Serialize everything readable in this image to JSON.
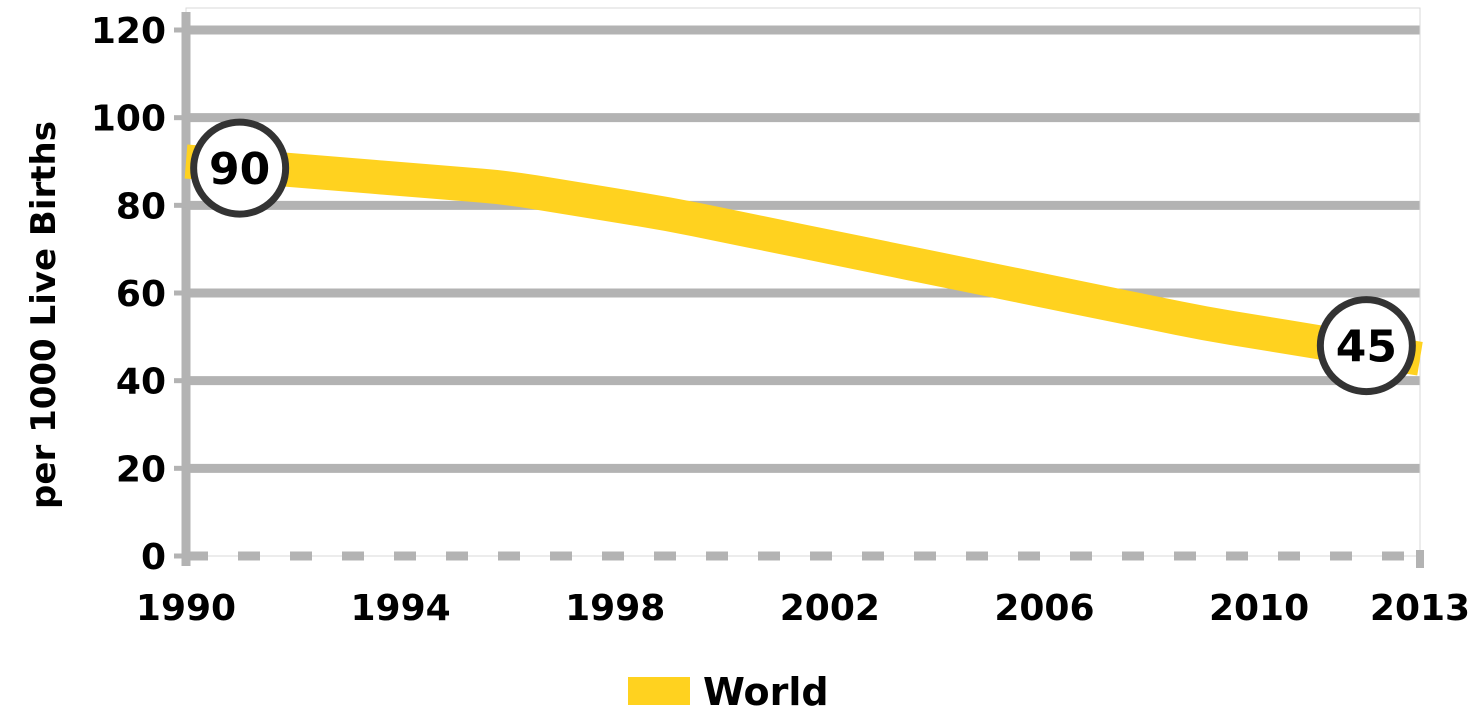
{
  "chart_data": {
    "type": "line",
    "title": "",
    "xlabel": "",
    "ylabel": "per 1000 Live Births",
    "xlim": [
      1990,
      2013
    ],
    "ylim": [
      0,
      120
    ],
    "x_ticks": [
      "1990",
      "1994",
      "1998",
      "2002",
      "2006",
      "2010",
      "2013"
    ],
    "x_tick_values": [
      1990,
      1994,
      1998,
      2002,
      2006,
      2010,
      2013
    ],
    "y_ticks": [
      "0",
      "20",
      "40",
      "60",
      "80",
      "100",
      "120"
    ],
    "y_tick_values": [
      0,
      20,
      40,
      60,
      80,
      100,
      120
    ],
    "grid": true,
    "legend_position": "bottom-center",
    "series": [
      {
        "name": "World",
        "color": "#FFD21F",
        "x": [
          1990,
          1991,
          1992,
          1993,
          1994,
          1995,
          1996,
          1997,
          1998,
          1999,
          2000,
          2001,
          2002,
          2003,
          2004,
          2005,
          2006,
          2007,
          2008,
          2009,
          2010,
          2011,
          2012,
          2013
        ],
        "values": [
          90,
          89,
          88,
          87,
          86,
          85,
          84,
          82,
          80,
          78,
          75.5,
          73,
          70.5,
          68,
          65.5,
          63,
          60.5,
          58,
          55.5,
          53,
          51,
          49,
          47,
          45
        ]
      }
    ],
    "annotations": [
      {
        "label": "90",
        "x": 1991,
        "y": 88.5
      },
      {
        "label": "45",
        "x": 2012,
        "y": 48
      }
    ],
    "colors": {
      "grid": "#B3B3B3",
      "axis": "#B3B3B3",
      "badge_border": "#333333"
    }
  }
}
